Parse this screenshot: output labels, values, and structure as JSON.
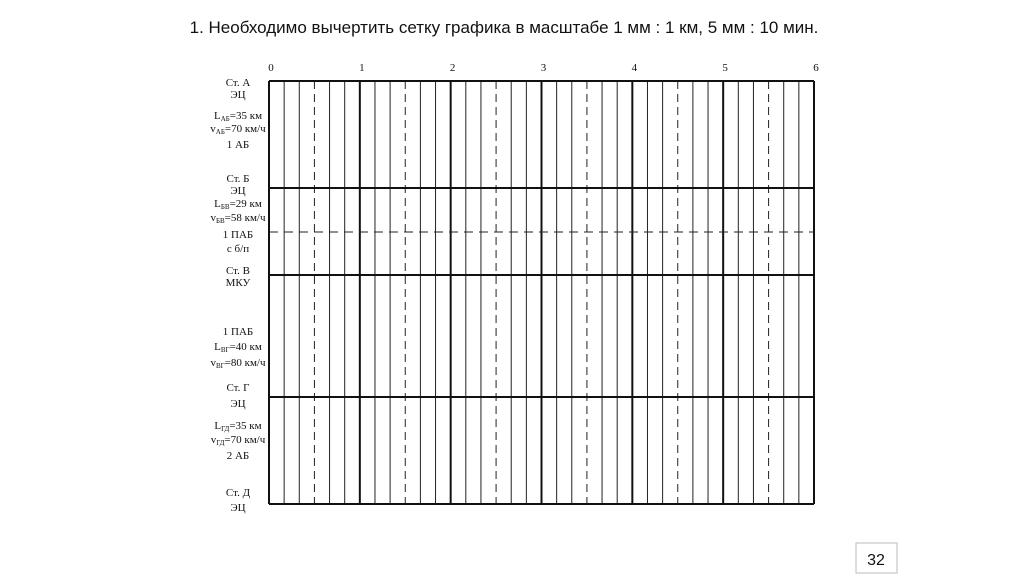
{
  "header": {
    "title": "1. Необходимо вычертить сетку графика в масштабе 1 мм : 1 км, 5 мм : 10 мин."
  },
  "grid": {
    "hours": [
      0,
      1,
      2,
      3,
      4,
      5,
      6
    ]
  },
  "labels": [
    "Ст. А",
    "ЭЦ",
    {
      "symbol": "L",
      "sub": "АБ",
      "text": "=35 км"
    },
    {
      "symbol": "v",
      "sub": "АБ",
      "text": "=70 км/ч"
    },
    "1 АБ",
    "Ст. Б",
    "ЭЦ",
    {
      "symbol": "L",
      "sub": "БВ",
      "text": "=29 км"
    },
    {
      "symbol": "v",
      "sub": "БВ",
      "text": "=58 км/ч"
    },
    "1 ПАБ",
    "с б/п",
    "Ст. В",
    "МКУ",
    "1 ПАБ",
    {
      "symbol": "L",
      "sub": "ВГ",
      "text": "=40 км"
    },
    {
      "symbol": "v",
      "sub": "ВГ",
      "text": "=80 км/ч"
    },
    "Ст. Г",
    "ЭЦ",
    {
      "symbol": "L",
      "sub": "ГД",
      "text": "=35 км"
    },
    {
      "symbol": "v",
      "sub": "ГД",
      "text": "=70 км/ч"
    },
    "2 АБ",
    "Ст. Д",
    "ЭЦ"
  ],
  "footer": {
    "page_number": "32"
  }
}
